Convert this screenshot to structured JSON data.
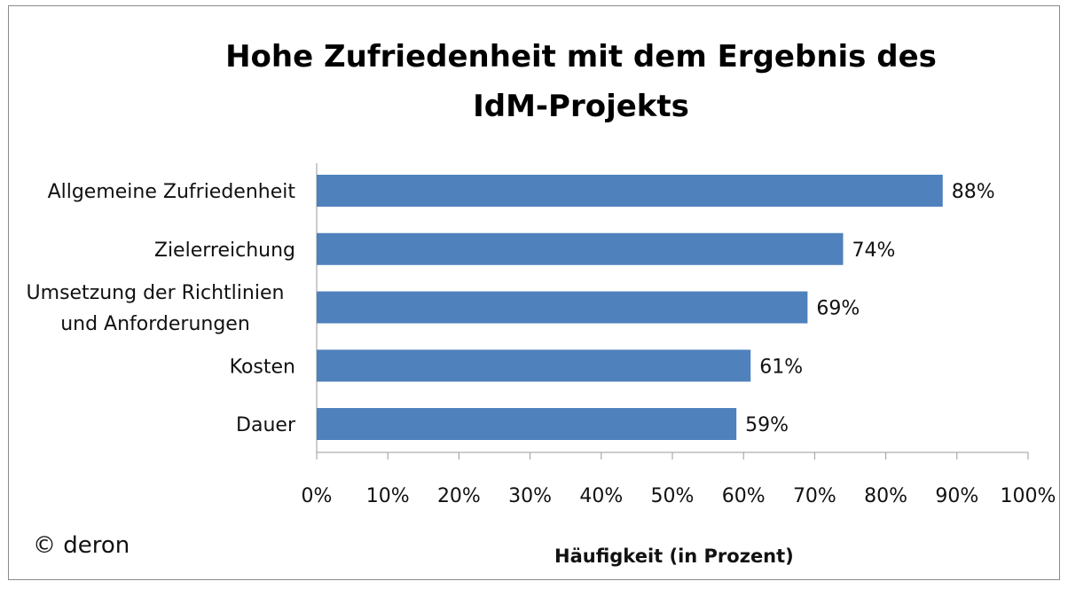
{
  "chart_data": {
    "type": "bar",
    "orientation": "horizontal",
    "title": "Hohe Zufriedenheit mit dem Ergebnis des IdM-Projekts",
    "title_lines": [
      "Hohe Zufriedenheit mit dem Ergebnis des",
      "IdM-Projekts"
    ],
    "categories": [
      [
        "Allgemeine Zufriedenheit"
      ],
      [
        "Zielerreichung"
      ],
      [
        "Umsetzung der Richtlinien",
        "und Anforderungen"
      ],
      [
        "Kosten"
      ],
      [
        "Dauer"
      ]
    ],
    "values": [
      88,
      74,
      69,
      61,
      59
    ],
    "data_labels": [
      "88%",
      "74%",
      "69%",
      "61%",
      "59%"
    ],
    "xlabel": "Häufigkeit (in Prozent)",
    "ylabel": "",
    "xlim": [
      0,
      100
    ],
    "x_ticks": [
      "0%",
      "10%",
      "20%",
      "30%",
      "40%",
      "50%",
      "60%",
      "70%",
      "80%",
      "90%",
      "100%"
    ],
    "grid": false,
    "legend": "none",
    "bar_color": "#4f81bd"
  },
  "copyright": "© deron"
}
